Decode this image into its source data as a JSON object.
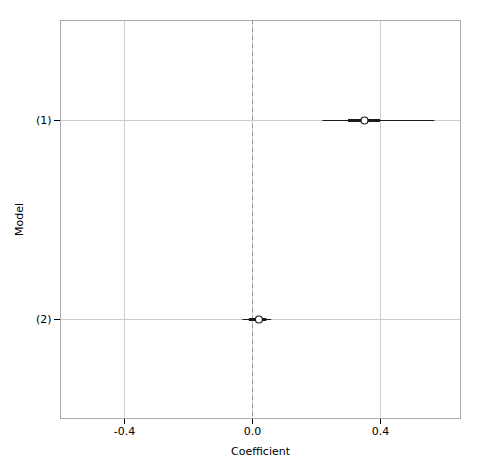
{
  "chart_data": {
    "type": "coefficient",
    "categories": [
      "(1)",
      "(2)"
    ],
    "values": [
      0.35,
      0.02
    ],
    "ci_lower": [
      0.22,
      -0.03
    ],
    "ci_upper": [
      0.57,
      0.06
    ],
    "inner_ci_lower": [
      0.3,
      -0.01
    ],
    "inner_ci_upper": [
      0.4,
      0.045
    ],
    "reference_line": 0.0,
    "xlim": [
      -0.6,
      0.65
    ],
    "xticks": [
      -0.4,
      {
        "value": 0.0,
        "label": "0.0"
      },
      0.4
    ],
    "xlabel": "Coefficient",
    "ylabel": "Model",
    "grid": true
  }
}
